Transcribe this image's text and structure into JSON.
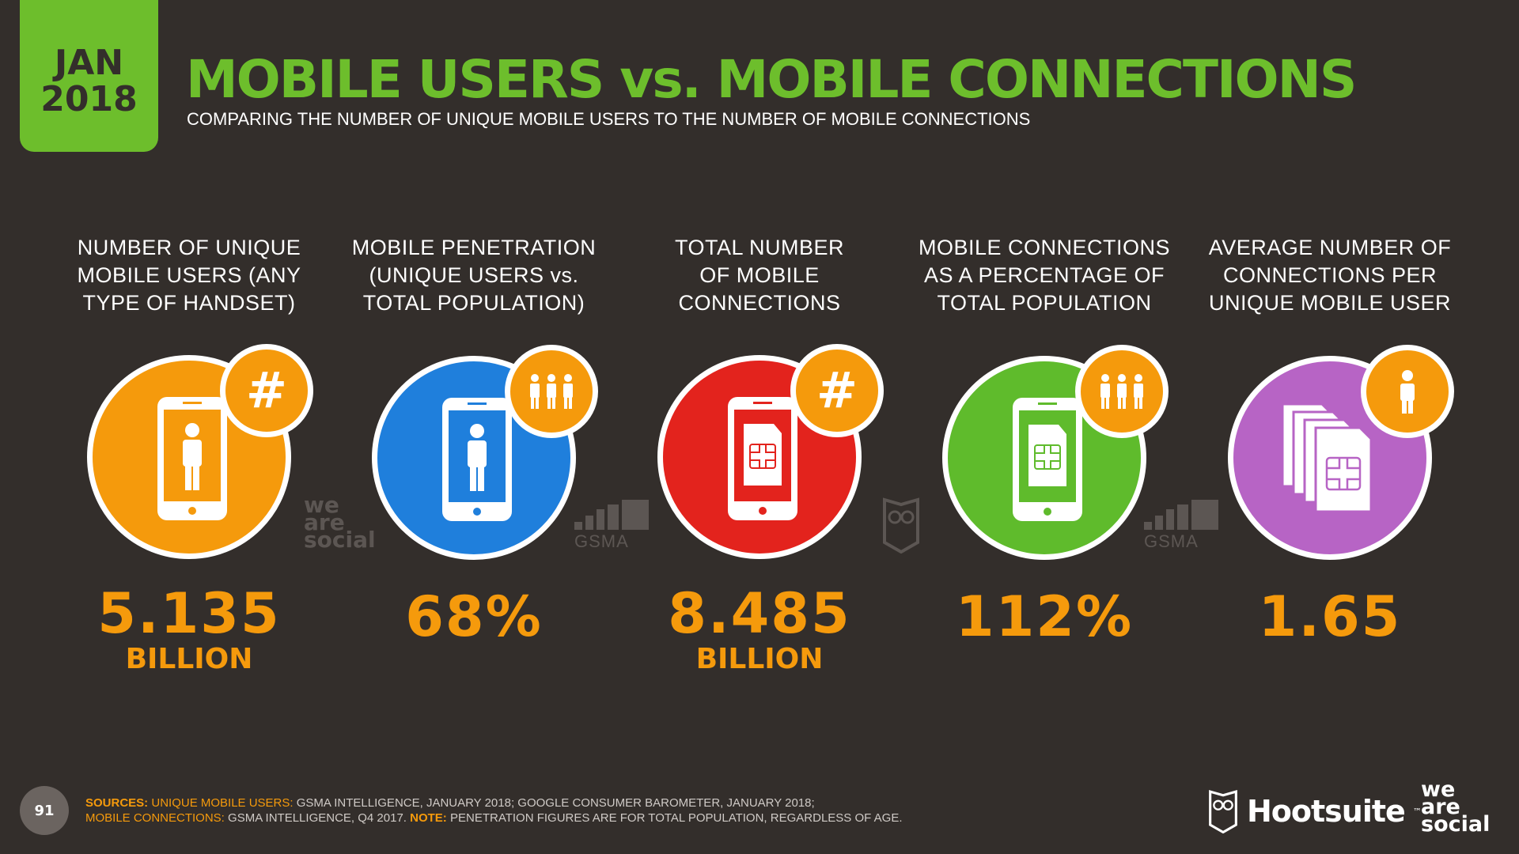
{
  "date_badge": {
    "month": "JAN",
    "year": "2018"
  },
  "header": {
    "title": "MOBILE USERS vs. MOBILE CONNECTIONS",
    "subtitle": "COMPARING THE NUMBER OF UNIQUE MOBILE USERS TO THE NUMBER OF MOBILE CONNECTIONS"
  },
  "colors": {
    "background": "#332e2b",
    "accent_green": "#6dbe2c",
    "accent_orange": "#f59a0c",
    "metric_orange": "#f59a0c",
    "metric_blue": "#1f7fdc",
    "metric_red": "#e3231d",
    "metric_green": "#5fbb2c",
    "metric_purple": "#b764c5"
  },
  "metrics": [
    {
      "label": "NUMBER OF UNIQUE\nMOBILE USERS (ANY\nTYPE OF HANDSET)",
      "value": "5.135",
      "unit": "BILLION",
      "color": "#f59a0c",
      "icon": "phone-person-icon",
      "badge_icon": "hash-icon"
    },
    {
      "label": "MOBILE PENETRATION\n(UNIQUE USERS vs.\nTOTAL POPULATION)",
      "value": "68%",
      "unit": "",
      "color": "#1f7fdc",
      "icon": "phone-person-icon",
      "badge_icon": "people-group-icon"
    },
    {
      "label": "TOTAL NUMBER\nOF MOBILE\nCONNECTIONS",
      "value": "8.485",
      "unit": "BILLION",
      "color": "#e3231d",
      "icon": "phone-sim-icon",
      "badge_icon": "hash-icon"
    },
    {
      "label": "MOBILE CONNECTIONS\nAS A PERCENTAGE OF\nTOTAL POPULATION",
      "value": "112%",
      "unit": "",
      "color": "#5fbb2c",
      "icon": "phone-sim-icon",
      "badge_icon": "people-group-icon"
    },
    {
      "label": "AVERAGE NUMBER OF\nCONNECTIONS PER\nUNIQUE MOBILE USER",
      "value": "1.65",
      "unit": "",
      "color": "#b764c5",
      "icon": "sim-cards-icon",
      "badge_icon": "person-icon"
    }
  ],
  "watermarks": {
    "we_are_social": [
      "we",
      "are",
      "social"
    ],
    "gsma": "GSMA"
  },
  "footer": {
    "page_number": "91",
    "sources_label": "SOURCES:",
    "unique_label": "UNIQUE MOBILE USERS:",
    "unique_text": "GSMA INTELLIGENCE, JANUARY 2018; GOOGLE CONSUMER BAROMETER, JANUARY 2018;",
    "connections_label": "MOBILE CONNECTIONS:",
    "connections_text": "GSMA INTELLIGENCE, Q4 2017.",
    "note_label": "NOTE:",
    "note_text": "PENETRATION FIGURES ARE FOR TOTAL POPULATION, REGARDLESS OF AGE."
  },
  "brands": {
    "hootsuite": "Hootsuite",
    "hootsuite_tm": "™",
    "we_are_social": [
      "we",
      "are",
      "social"
    ]
  }
}
